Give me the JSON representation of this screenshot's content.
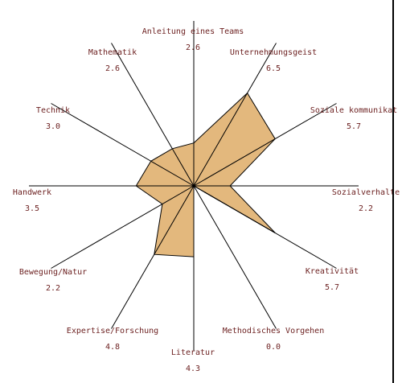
{
  "chart_data": {
    "type": "radar",
    "title": "",
    "max_value": 10,
    "fill_color": "#e3b87d",
    "outline_color": "#000000",
    "label_color": "#6b1f1f",
    "axes": [
      {
        "label": "Anleitung eines Teams",
        "value": 2.6
      },
      {
        "label": "Unternehmungsgeist",
        "value": 6.5
      },
      {
        "label": "Soziale kommunikat",
        "value": 5.7
      },
      {
        "label": "Sozialverhalte",
        "value": 2.2
      },
      {
        "label": "Kreativität",
        "value": 5.7
      },
      {
        "label": "Methodisches Vorgehen",
        "value": 0.0
      },
      {
        "label": "Literatur",
        "value": 4.3
      },
      {
        "label": "Expertise/Forschung",
        "value": 4.8
      },
      {
        "label": "Bewegung/Natur",
        "value": 2.2
      },
      {
        "label": "Handwerk",
        "value": 3.5
      },
      {
        "label": "Technik",
        "value": 3.0
      },
      {
        "label": "Mathematik",
        "value": 2.6
      }
    ],
    "value_text": [
      "2.6",
      "6.5",
      "5.7",
      "2.2",
      "5.7",
      "0.0",
      "4.3",
      "4.8",
      "2.2",
      "3.5",
      "3.0",
      "2.6"
    ]
  }
}
